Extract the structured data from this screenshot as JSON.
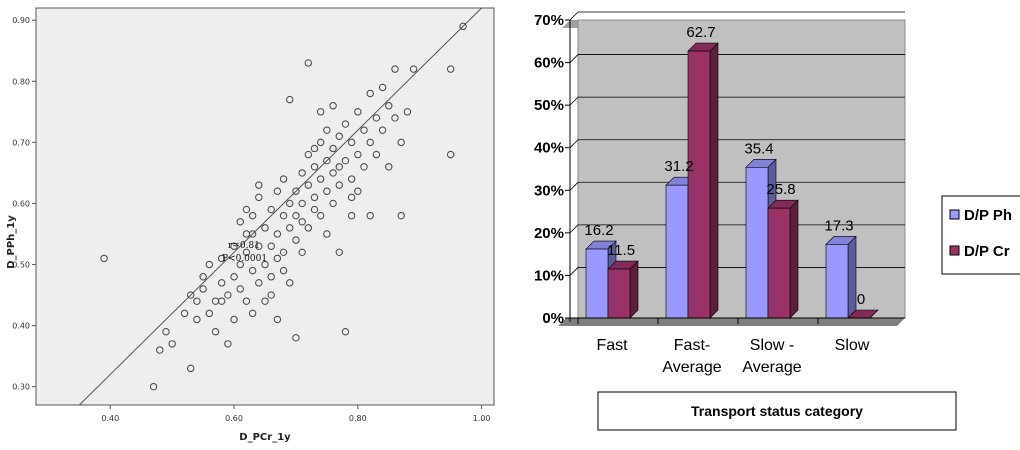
{
  "chart_data": [
    {
      "type": "scatter",
      "xlabel": "D_PCr_1y",
      "ylabel": "D_PPh_1y",
      "xlim": [
        0.28,
        1.02
      ],
      "ylim": [
        0.27,
        0.92
      ],
      "x_ticks": [
        "0.40",
        "0.60",
        "0.80",
        "1.00"
      ],
      "y_ticks": [
        "0.30",
        "0.40",
        "0.50",
        "0.60",
        "0.70",
        "0.80",
        "0.90"
      ],
      "annotation": [
        "r=0.81",
        "P<0.0001"
      ],
      "fit_line": {
        "slope": 1.0,
        "intercept": -0.08
      },
      "points": [
        [
          0.39,
          0.51
        ],
        [
          0.47,
          0.3
        ],
        [
          0.48,
          0.36
        ],
        [
          0.49,
          0.39
        ],
        [
          0.5,
          0.37
        ],
        [
          0.52,
          0.42
        ],
        [
          0.53,
          0.45
        ],
        [
          0.53,
          0.33
        ],
        [
          0.54,
          0.41
        ],
        [
          0.54,
          0.44
        ],
        [
          0.55,
          0.46
        ],
        [
          0.55,
          0.48
        ],
        [
          0.56,
          0.42
        ],
        [
          0.56,
          0.5
        ],
        [
          0.57,
          0.44
        ],
        [
          0.57,
          0.39
        ],
        [
          0.58,
          0.47
        ],
        [
          0.58,
          0.51
        ],
        [
          0.59,
          0.45
        ],
        [
          0.59,
          0.37
        ],
        [
          0.6,
          0.48
        ],
        [
          0.6,
          0.53
        ],
        [
          0.6,
          0.41
        ],
        [
          0.61,
          0.5
        ],
        [
          0.61,
          0.57
        ],
        [
          0.61,
          0.46
        ],
        [
          0.62,
          0.52
        ],
        [
          0.62,
          0.44
        ],
        [
          0.62,
          0.55
        ],
        [
          0.63,
          0.49
        ],
        [
          0.63,
          0.58
        ],
        [
          0.63,
          0.42
        ],
        [
          0.64,
          0.53
        ],
        [
          0.64,
          0.47
        ],
        [
          0.64,
          0.61
        ],
        [
          0.65,
          0.5
        ],
        [
          0.65,
          0.56
        ],
        [
          0.65,
          0.44
        ],
        [
          0.66,
          0.59
        ],
        [
          0.66,
          0.53
        ],
        [
          0.66,
          0.48
        ],
        [
          0.67,
          0.62
        ],
        [
          0.67,
          0.55
        ],
        [
          0.67,
          0.51
        ],
        [
          0.67,
          0.41
        ],
        [
          0.68,
          0.58
        ],
        [
          0.68,
          0.64
        ],
        [
          0.68,
          0.52
        ],
        [
          0.69,
          0.6
        ],
        [
          0.69,
          0.56
        ],
        [
          0.69,
          0.47
        ],
        [
          0.69,
          0.77
        ],
        [
          0.7,
          0.62
        ],
        [
          0.7,
          0.58
        ],
        [
          0.7,
          0.54
        ],
        [
          0.7,
          0.38
        ],
        [
          0.71,
          0.65
        ],
        [
          0.71,
          0.6
        ],
        [
          0.71,
          0.57
        ],
        [
          0.72,
          0.68
        ],
        [
          0.72,
          0.63
        ],
        [
          0.72,
          0.56
        ],
        [
          0.72,
          0.83
        ],
        [
          0.73,
          0.66
        ],
        [
          0.73,
          0.61
        ],
        [
          0.73,
          0.59
        ],
        [
          0.74,
          0.7
        ],
        [
          0.74,
          0.64
        ],
        [
          0.74,
          0.58
        ],
        [
          0.75,
          0.72
        ],
        [
          0.75,
          0.67
        ],
        [
          0.75,
          0.62
        ],
        [
          0.75,
          0.55
        ],
        [
          0.76,
          0.69
        ],
        [
          0.76,
          0.65
        ],
        [
          0.76,
          0.6
        ],
        [
          0.76,
          0.76
        ],
        [
          0.77,
          0.71
        ],
        [
          0.77,
          0.63
        ],
        [
          0.77,
          0.52
        ],
        [
          0.78,
          0.73
        ],
        [
          0.78,
          0.67
        ],
        [
          0.78,
          0.39
        ],
        [
          0.79,
          0.7
        ],
        [
          0.79,
          0.64
        ],
        [
          0.79,
          0.58
        ],
        [
          0.8,
          0.75
        ],
        [
          0.8,
          0.68
        ],
        [
          0.8,
          0.62
        ],
        [
          0.81,
          0.72
        ],
        [
          0.81,
          0.66
        ],
        [
          0.82,
          0.78
        ],
        [
          0.82,
          0.7
        ],
        [
          0.82,
          0.58
        ],
        [
          0.83,
          0.74
        ],
        [
          0.83,
          0.68
        ],
        [
          0.84,
          0.79
        ],
        [
          0.84,
          0.72
        ],
        [
          0.85,
          0.76
        ],
        [
          0.85,
          0.66
        ],
        [
          0.86,
          0.82
        ],
        [
          0.86,
          0.74
        ],
        [
          0.87,
          0.7
        ],
        [
          0.87,
          0.58
        ],
        [
          0.88,
          0.75
        ],
        [
          0.89,
          0.82
        ],
        [
          0.95,
          0.82
        ],
        [
          0.95,
          0.68
        ],
        [
          0.97,
          0.89
        ],
        [
          0.68,
          0.49
        ],
        [
          0.71,
          0.52
        ],
        [
          0.73,
          0.69
        ],
        [
          0.74,
          0.75
        ],
        [
          0.64,
          0.63
        ],
        [
          0.62,
          0.59
        ],
        [
          0.58,
          0.44
        ],
        [
          0.66,
          0.45
        ],
        [
          0.63,
          0.55
        ],
        [
          0.77,
          0.66
        ],
        [
          0.79,
          0.61
        ]
      ]
    },
    {
      "type": "bar",
      "categories": [
        [
          "Fast"
        ],
        [
          "Fast-",
          "Average"
        ],
        [
          "Slow -",
          "Average"
        ],
        [
          "Slow"
        ]
      ],
      "series": [
        {
          "name": "D/P Ph",
          "values": [
            16.2,
            31.2,
            35.4,
            17.3
          ],
          "labels": [
            "16.2",
            "31.2",
            "35.4",
            "17.3"
          ],
          "color": "#9999ff"
        },
        {
          "name": "D/P Cr",
          "values": [
            11.5,
            62.7,
            25.8,
            0
          ],
          "labels": [
            "11.5",
            "62.7",
            "25.8",
            "0"
          ],
          "color": "#993366"
        }
      ],
      "ylim": [
        0,
        70
      ],
      "y_ticks": [
        "0%",
        "10%",
        "20%",
        "30%",
        "40%",
        "50%",
        "60%",
        "70%"
      ],
      "xlabel": "Transport status category",
      "grid": true,
      "legend_position": "right",
      "plot_background": "#c0c0c0"
    }
  ]
}
